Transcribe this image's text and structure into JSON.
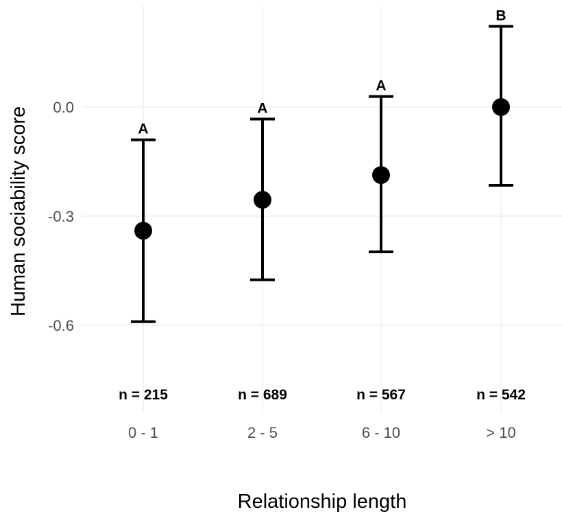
{
  "chart_data": {
    "type": "scatter",
    "title": "",
    "xlabel": "Relationship length",
    "ylabel": "Human sociability score",
    "categories": [
      "0 - 1",
      "2 - 5",
      "6 - 10",
      "> 10"
    ],
    "y_ticks": [
      "0.0",
      "-0.3",
      "-0.6"
    ],
    "ylim": [
      -0.75,
      0.22
    ],
    "grid": true,
    "points": [
      {
        "category": "0 - 1",
        "mean": -0.34,
        "lower": -0.59,
        "upper": -0.09,
        "letter": "A",
        "n": "n = 215"
      },
      {
        "category": "2 - 5",
        "mean": -0.255,
        "lower": -0.475,
        "upper": -0.033,
        "letter": "A",
        "n": "n = 689"
      },
      {
        "category": "6 - 10",
        "mean": -0.187,
        "lower": -0.398,
        "upper": 0.029,
        "letter": "A",
        "n": "n = 567"
      },
      {
        "category": "> 10",
        "mean": 0.0,
        "lower": -0.215,
        "upper": 0.222,
        "letter": "B",
        "n": "n = 542"
      }
    ],
    "colors": {
      "points": "#000000",
      "grid": "#ebebeb",
      "tick_text": "#4d4d4d"
    }
  }
}
